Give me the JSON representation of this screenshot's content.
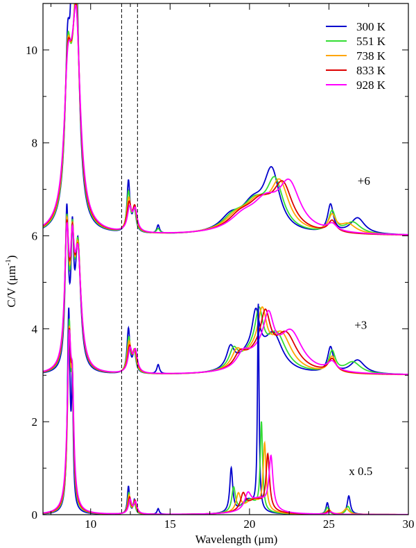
{
  "chart_data": {
    "type": "line",
    "title": "",
    "xlabel": "Wavelength (μm)",
    "ylabel": "C/V (μm",
    "ylabel_sup": "-1",
    "ylabel_close": ")",
    "xlim": [
      7,
      30
    ],
    "ylim": [
      0,
      11
    ],
    "xticks": [
      10,
      15,
      20,
      25,
      30
    ],
    "yticks": [
      0,
      2,
      4,
      6,
      8,
      10
    ],
    "vlines": [
      11.95,
      12.95
    ],
    "legend_position": "top-right",
    "annotations": [
      {
        "text": "+6",
        "x": 27.2,
        "y": 7.1
      },
      {
        "text": "+3",
        "x": 27.0,
        "y": 4.0
      },
      {
        "text": "x 0.5",
        "x": 27.0,
        "y": 0.85
      }
    ],
    "series": [
      {
        "name": "300 K",
        "color": "#0000cc"
      },
      {
        "name": "551 K",
        "color": "#33dd33"
      },
      {
        "name": "738 K",
        "color": "#ffa500"
      },
      {
        "name": "833 K",
        "color": "#dd0000"
      },
      {
        "name": "928 K",
        "color": "#ff00ff"
      }
    ],
    "panels": [
      {
        "offset": 6,
        "scale": 1,
        "series": [
          {
            "name": "300 K",
            "peaks": [
              [
                8.55,
                2.5,
                0.18
              ],
              [
                8.8,
                1.8,
                0.08
              ],
              [
                8.75,
                1.6,
                0.4
              ],
              [
                9.1,
                4.4,
                0.22
              ],
              [
                12.38,
                1.1,
                0.11
              ],
              [
                12.75,
                0.5,
                0.12
              ],
              [
                14.25,
                0.18,
                0.1
              ],
              [
                18.8,
                0.3,
                0.8
              ],
              [
                20.2,
                0.55,
                0.9
              ],
              [
                21.4,
                1.25,
                0.6
              ],
              [
                25.1,
                0.6,
                0.22
              ],
              [
                26.8,
                0.35,
                0.55
              ]
            ]
          },
          {
            "name": "551 K",
            "peaks": [
              [
                8.55,
                2.3,
                0.2
              ],
              [
                8.75,
                1.6,
                0.4
              ],
              [
                9.1,
                4.1,
                0.25
              ],
              [
                12.38,
                0.85,
                0.13
              ],
              [
                12.75,
                0.5,
                0.13
              ],
              [
                14.25,
                0.1,
                0.12
              ],
              [
                19.0,
                0.3,
                0.9
              ],
              [
                20.3,
                0.55,
                0.9
              ],
              [
                21.6,
                1.05,
                0.65
              ],
              [
                25.2,
                0.45,
                0.26
              ],
              [
                26.5,
                0.25,
                0.6
              ]
            ]
          },
          {
            "name": "738 K",
            "peaks": [
              [
                8.55,
                2.2,
                0.22
              ],
              [
                8.75,
                1.5,
                0.42
              ],
              [
                9.1,
                3.9,
                0.27
              ],
              [
                12.4,
                0.7,
                0.15
              ],
              [
                12.77,
                0.5,
                0.14
              ],
              [
                19.2,
                0.3,
                1.0
              ],
              [
                20.5,
                0.55,
                0.95
              ],
              [
                21.9,
                1.0,
                0.7
              ],
              [
                25.2,
                0.35,
                0.28
              ],
              [
                26.2,
                0.2,
                0.6
              ]
            ]
          },
          {
            "name": "833 K",
            "peaks": [
              [
                8.55,
                2.1,
                0.24
              ],
              [
                8.75,
                1.5,
                0.44
              ],
              [
                9.1,
                3.7,
                0.28
              ],
              [
                12.42,
                0.6,
                0.16
              ],
              [
                12.78,
                0.5,
                0.15
              ],
              [
                19.4,
                0.3,
                1.0
              ],
              [
                20.7,
                0.55,
                1.0
              ],
              [
                22.1,
                0.95,
                0.75
              ],
              [
                25.2,
                0.25,
                0.3
              ]
            ]
          },
          {
            "name": "928 K",
            "peaks": [
              [
                8.55,
                2.0,
                0.26
              ],
              [
                8.75,
                1.4,
                0.45
              ],
              [
                9.1,
                3.65,
                0.3
              ],
              [
                12.45,
                0.5,
                0.17
              ],
              [
                12.8,
                0.45,
                0.16
              ],
              [
                19.6,
                0.3,
                1.1
              ],
              [
                21.0,
                0.55,
                1.0
              ],
              [
                22.5,
                1.0,
                0.85
              ],
              [
                25.2,
                0.15,
                0.35
              ]
            ]
          }
        ]
      },
      {
        "offset": 3,
        "scale": 1,
        "series": [
          {
            "name": "300 K",
            "peaks": [
              [
                8.5,
                3.3,
                0.12
              ],
              [
                8.85,
                2.4,
                0.1
              ],
              [
                9.2,
                2.7,
                0.2
              ],
              [
                12.38,
                0.95,
                0.11
              ],
              [
                12.75,
                0.45,
                0.12
              ],
              [
                14.25,
                0.2,
                0.1
              ],
              [
                18.8,
                0.45,
                0.3
              ],
              [
                19.8,
                0.3,
                0.8
              ],
              [
                20.4,
                1.0,
                0.3
              ],
              [
                21.5,
                0.8,
                0.7
              ],
              [
                25.1,
                0.55,
                0.22
              ],
              [
                26.8,
                0.3,
                0.55
              ]
            ]
          },
          {
            "name": "551 K",
            "peaks": [
              [
                8.5,
                3.0,
                0.14
              ],
              [
                8.85,
                2.2,
                0.12
              ],
              [
                9.2,
                2.6,
                0.22
              ],
              [
                12.4,
                0.75,
                0.13
              ],
              [
                12.75,
                0.45,
                0.13
              ],
              [
                19.0,
                0.4,
                0.35
              ],
              [
                20.0,
                0.3,
                0.8
              ],
              [
                20.6,
                1.0,
                0.32
              ],
              [
                21.7,
                0.8,
                0.75
              ],
              [
                25.2,
                0.45,
                0.25
              ],
              [
                26.5,
                0.25,
                0.6
              ]
            ]
          },
          {
            "name": "738 K",
            "peaks": [
              [
                8.5,
                2.9,
                0.15
              ],
              [
                8.85,
                2.1,
                0.13
              ],
              [
                9.2,
                2.5,
                0.23
              ],
              [
                12.42,
                0.65,
                0.14
              ],
              [
                12.77,
                0.45,
                0.14
              ],
              [
                19.2,
                0.35,
                0.4
              ],
              [
                20.2,
                0.3,
                0.85
              ],
              [
                20.8,
                1.0,
                0.35
              ],
              [
                22.0,
                0.8,
                0.8
              ],
              [
                25.2,
                0.35,
                0.28
              ]
            ]
          },
          {
            "name": "833 K",
            "peaks": [
              [
                8.5,
                2.8,
                0.16
              ],
              [
                8.85,
                2.0,
                0.14
              ],
              [
                9.2,
                2.4,
                0.24
              ],
              [
                12.45,
                0.55,
                0.15
              ],
              [
                12.8,
                0.45,
                0.15
              ],
              [
                19.4,
                0.3,
                0.45
              ],
              [
                20.4,
                0.3,
                0.9
              ],
              [
                21.0,
                0.95,
                0.38
              ],
              [
                22.3,
                0.8,
                0.85
              ],
              [
                25.2,
                0.28,
                0.3
              ]
            ]
          },
          {
            "name": "928 K",
            "peaks": [
              [
                8.5,
                2.7,
                0.17
              ],
              [
                8.85,
                1.9,
                0.15
              ],
              [
                9.2,
                2.35,
                0.25
              ],
              [
                12.48,
                0.5,
                0.16
              ],
              [
                12.82,
                0.45,
                0.15
              ],
              [
                19.6,
                0.3,
                0.5
              ],
              [
                20.6,
                0.3,
                0.95
              ],
              [
                21.2,
                0.9,
                0.4
              ],
              [
                22.6,
                0.85,
                0.9
              ],
              [
                25.2,
                0.2,
                0.35
              ]
            ]
          }
        ]
      },
      {
        "offset": 0,
        "scale": 0.5,
        "series": [
          {
            "name": "300 K",
            "peaks": [
              [
                8.62,
                8.6,
                0.1
              ],
              [
                8.85,
                5.0,
                0.06
              ],
              [
                12.38,
                1.2,
                0.08
              ],
              [
                12.75,
                0.6,
                0.08
              ],
              [
                14.25,
                0.25,
                0.08
              ],
              [
                18.85,
                1.9,
                0.11
              ],
              [
                19.9,
                0.6,
                0.5
              ],
              [
                20.55,
                8.9,
                0.06
              ],
              [
                24.9,
                0.5,
                0.1
              ],
              [
                26.25,
                0.8,
                0.12
              ]
            ]
          },
          {
            "name": "551 K",
            "peaks": [
              [
                8.65,
                7.8,
                0.12
              ],
              [
                8.85,
                4.5,
                0.08
              ],
              [
                12.4,
                0.9,
                0.09
              ],
              [
                12.75,
                0.55,
                0.09
              ],
              [
                19.0,
                1.05,
                0.14
              ],
              [
                20.0,
                0.6,
                0.55
              ],
              [
                20.75,
                3.8,
                0.09
              ],
              [
                24.9,
                0.3,
                0.12
              ],
              [
                26.2,
                0.35,
                0.15
              ]
            ]
          },
          {
            "name": "738 K",
            "peaks": [
              [
                8.65,
                7.4,
                0.13
              ],
              [
                8.85,
                4.2,
                0.09
              ],
              [
                12.42,
                0.8,
                0.1
              ],
              [
                12.78,
                0.55,
                0.1
              ],
              [
                19.3,
                0.75,
                0.17
              ],
              [
                20.2,
                0.6,
                0.6
              ],
              [
                20.95,
                2.85,
                0.11
              ],
              [
                25.0,
                0.2,
                0.15
              ],
              [
                26.1,
                0.25,
                0.2
              ]
            ]
          },
          {
            "name": "833 K",
            "peaks": [
              [
                8.65,
                7.2,
                0.14
              ],
              [
                8.85,
                4.0,
                0.1
              ],
              [
                12.45,
                0.7,
                0.11
              ],
              [
                12.8,
                0.55,
                0.11
              ],
              [
                19.6,
                0.7,
                0.2
              ],
              [
                20.4,
                0.6,
                0.65
              ],
              [
                21.15,
                2.35,
                0.13
              ],
              [
                25.0,
                0.15,
                0.18
              ]
            ]
          },
          {
            "name": "928 K",
            "peaks": [
              [
                8.65,
                7.0,
                0.15
              ],
              [
                8.85,
                3.9,
                0.11
              ],
              [
                12.48,
                0.6,
                0.12
              ],
              [
                12.82,
                0.5,
                0.12
              ],
              [
                19.9,
                0.65,
                0.24
              ],
              [
                20.6,
                0.6,
                0.7
              ],
              [
                21.35,
                2.25,
                0.15
              ],
              [
                25.1,
                0.1,
                0.2
              ]
            ]
          }
        ]
      }
    ]
  }
}
